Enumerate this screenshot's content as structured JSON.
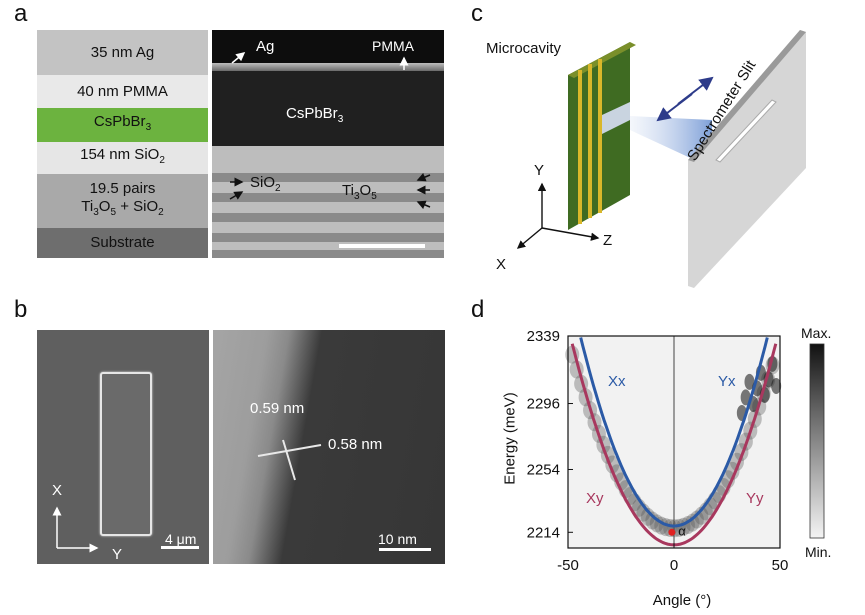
{
  "panels": {
    "a": "a",
    "b": "b",
    "c": "c",
    "d": "d"
  },
  "panel_a": {
    "layers": [
      "35 nm Ag",
      "40 nm PMMA",
      "CsPbBr3",
      "154 nm SiO2",
      "19.5 pairs",
      "Ti3O5 + SiO2",
      "Substrate"
    ],
    "tem_labels": {
      "ag": "Ag",
      "pmma": "PMMA",
      "cspbbr3": "CsPbBr3",
      "sio2": "SiO2",
      "ti3o5": "Ti3O5"
    }
  },
  "panel_b": {
    "axis_x": "X",
    "axis_y": "Y",
    "scale_left": "4 μm",
    "d1": "0.59 nm",
    "d2": "0.58 nm",
    "scale_right": "10 nm"
  },
  "panel_c": {
    "microcavity": "Microcavity",
    "slit": "Spectrometer Slit",
    "axes": {
      "x": "X",
      "y": "Y",
      "z": "Z"
    }
  },
  "chart_data": {
    "type": "heatmap",
    "xlabel": "Angle (°)",
    "ylabel": "Energy (meV)",
    "xlim": [
      -50,
      50
    ],
    "ylim": [
      2204,
      2339
    ],
    "x_ticks": [
      -50,
      0,
      50
    ],
    "y_ticks": [
      2339,
      2296,
      2254,
      2214
    ],
    "series": [
      {
        "name": "Xx",
        "color": "#2b5aa6"
      },
      {
        "name": "Yx",
        "color": "#2b5aa6"
      },
      {
        "name": "Xy",
        "color": "#a8385e"
      },
      {
        "name": "Yy",
        "color": "#a8385e"
      }
    ],
    "marker_label": "α",
    "colorbar": {
      "max": "Max.",
      "min": "Min."
    }
  },
  "colors": {
    "blue": "#2b5aa6",
    "magenta": "#a8385e",
    "green": "#6cb33f"
  }
}
